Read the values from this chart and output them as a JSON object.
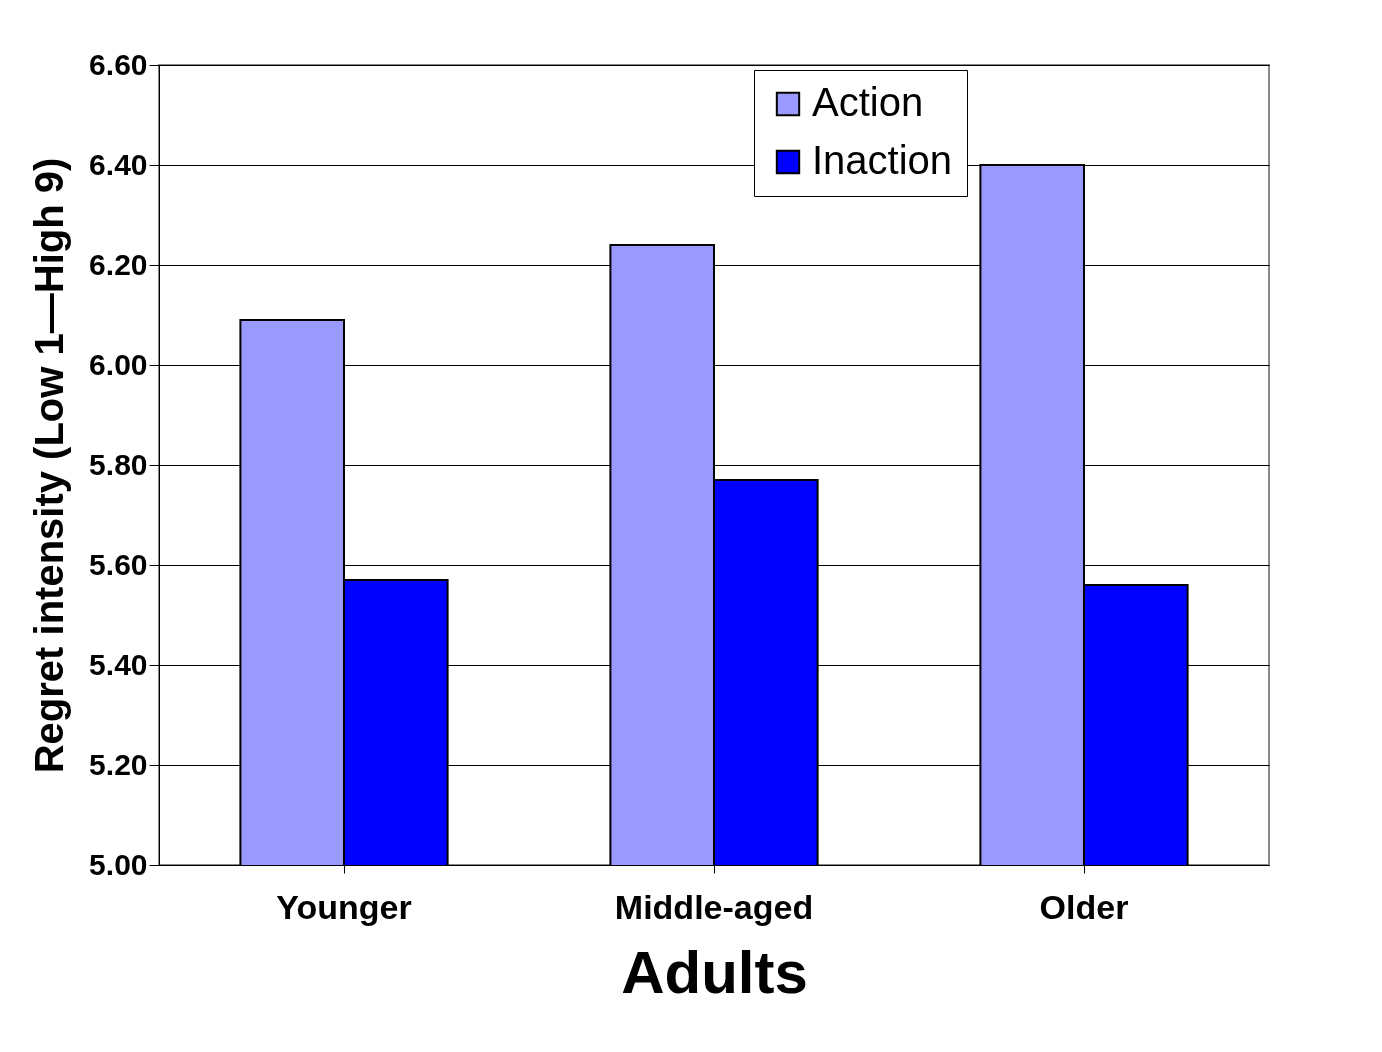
{
  "chart_data": {
    "type": "bar",
    "xlabel": "Adults",
    "ylabel": "Regret intensity (Low 1—High 9)",
    "categories": [
      "Younger",
      "Middle-aged",
      "Older"
    ],
    "series": [
      {
        "name": "Action",
        "color": "#9999ff",
        "values": [
          6.09,
          6.24,
          6.4
        ]
      },
      {
        "name": "Inaction",
        "color": "#0000ff",
        "values": [
          5.57,
          5.77,
          5.56
        ]
      }
    ],
    "ylim": [
      5.0,
      6.6
    ],
    "yticks": [
      {
        "value": 5.0,
        "label": "5.00"
      },
      {
        "value": 5.2,
        "label": "5.20"
      },
      {
        "value": 5.4,
        "label": "5.40"
      },
      {
        "value": 5.6,
        "label": "5.60"
      },
      {
        "value": 5.8,
        "label": "5.80"
      },
      {
        "value": 6.0,
        "label": "6.00"
      },
      {
        "value": 6.2,
        "label": "6.20"
      },
      {
        "value": 6.4,
        "label": "6.40"
      },
      {
        "value": 6.6,
        "label": "6.60"
      }
    ],
    "grid": "y",
    "legend": "top"
  }
}
